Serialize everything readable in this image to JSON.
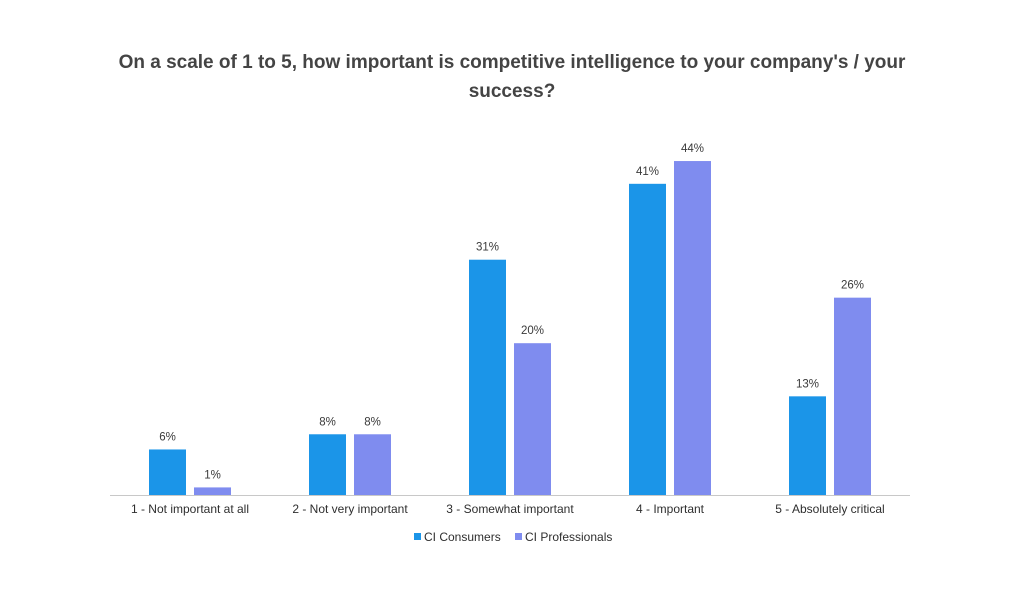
{
  "chart_data": {
    "type": "bar",
    "title": "On a scale of 1 to 5, how important is competitive intelligence to your company's / your success?",
    "categories": [
      "1 - Not important at all",
      "2 - Not very important",
      "3 - Somewhat important",
      "4 - Important",
      "5 - Absolutely critical"
    ],
    "series": [
      {
        "name": "CI Consumers",
        "values": [
          6,
          8,
          31,
          41,
          13
        ],
        "labels": [
          "6%",
          "8%",
          "31%",
          "41%",
          "13%"
        ],
        "color": "#1b95e8"
      },
      {
        "name": "CI Professionals",
        "values": [
          1,
          8,
          20,
          44,
          26
        ],
        "labels": [
          "1%",
          "8%",
          "20%",
          "44%",
          "26%"
        ],
        "color": "#7f8cef"
      }
    ],
    "ylim": [
      0,
      45
    ],
    "grid": false,
    "legend_position": "bottom"
  }
}
